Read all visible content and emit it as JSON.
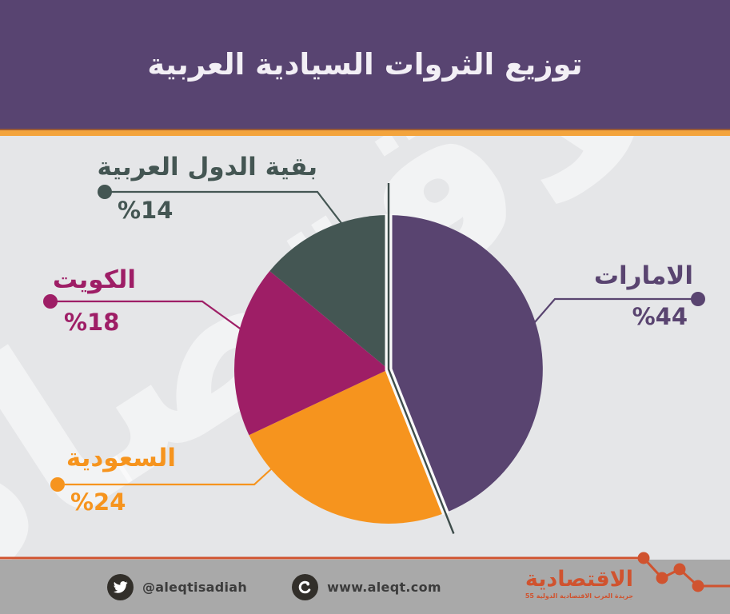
{
  "header": {
    "title": "توزيع الثروات السيادية العربية"
  },
  "watermark_text": "الاقتصادية",
  "chart_data": {
    "type": "pie",
    "title": "توزيع الثروات السيادية العربية",
    "start_angle_deg": 0,
    "direction": "clockwise",
    "slices": [
      {
        "label": "الامارات",
        "value": 44,
        "pct_label": "%44",
        "color": "#594470"
      },
      {
        "label": "السعودية",
        "value": 24,
        "pct_label": "%24",
        "color": "#f6941e"
      },
      {
        "label": "الكويت",
        "value": 18,
        "pct_label": "%18",
        "color": "#9e1e66"
      },
      {
        "label": "بقية الدول العربية",
        "value": 14,
        "pct_label": "%14",
        "color": "#445653"
      }
    ],
    "divider_line_color": "#3e4d4b",
    "gap_color": "#fafafa"
  },
  "colors": {
    "header_bg": "#584471",
    "accent_orange": "#f3a43d",
    "stage_bg": "#e5e6e8",
    "footer_bg": "#a9a9a9",
    "footer_accent": "#d0532f"
  },
  "footer": {
    "twitter_icon": "twitter-bird-icon",
    "twitter_handle": "@aleqtisadiah",
    "globe_icon": "globe-icon",
    "website": "www.aleqt.com",
    "logo_text": "الاقتصادية",
    "logo_tagline": "جريدة العرب الاقتصادية الدولية 55"
  }
}
